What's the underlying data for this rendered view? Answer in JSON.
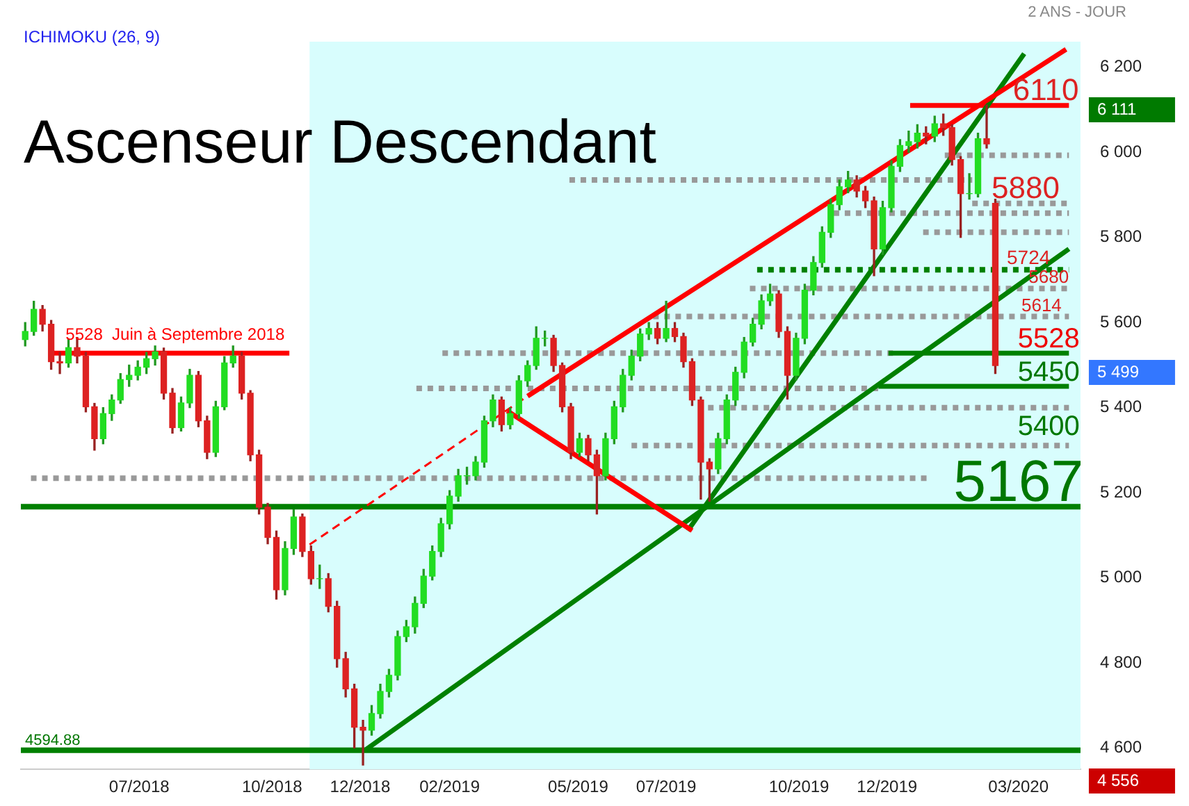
{
  "chart_data": {
    "type": "candlestick",
    "title": "Ascenseur Descendant",
    "subtitle": "ICHIMOKU (26, 9)",
    "x": [
      "2018-04-13",
      "2018-04-19",
      "2018-04-25",
      "2018-05-01",
      "2018-05-07",
      "2018-05-13",
      "2018-05-19",
      "2018-05-25",
      "2018-05-31",
      "2018-06-06",
      "2018-06-12",
      "2018-06-18",
      "2018-06-24",
      "2018-06-30",
      "2018-07-06",
      "2018-07-12",
      "2018-07-18",
      "2018-07-24",
      "2018-07-30",
      "2018-08-05",
      "2018-08-11",
      "2018-08-17",
      "2018-08-23",
      "2018-08-29",
      "2018-09-04",
      "2018-09-10",
      "2018-09-16",
      "2018-09-22",
      "2018-09-28",
      "2018-10-04",
      "2018-10-10",
      "2018-10-16",
      "2018-10-22",
      "2018-10-28",
      "2018-11-03",
      "2018-11-09",
      "2018-11-15",
      "2018-11-21",
      "2018-11-27",
      "2018-12-03",
      "2018-12-09",
      "2018-12-15",
      "2018-12-21",
      "2018-12-27",
      "2019-01-02",
      "2019-01-08",
      "2019-01-14",
      "2019-01-20",
      "2019-01-26",
      "2019-02-01",
      "2019-02-07",
      "2019-02-13",
      "2019-02-19",
      "2019-02-25",
      "2019-03-03",
      "2019-03-09",
      "2019-03-15",
      "2019-03-21",
      "2019-03-27",
      "2019-04-02",
      "2019-04-08",
      "2019-04-14",
      "2019-04-20",
      "2019-04-26",
      "2019-05-02",
      "2019-05-08",
      "2019-05-14",
      "2019-05-20",
      "2019-05-26",
      "2019-06-01",
      "2019-06-07",
      "2019-06-13",
      "2019-06-19",
      "2019-06-25",
      "2019-07-01",
      "2019-07-07",
      "2019-07-13",
      "2019-07-19",
      "2019-07-25",
      "2019-07-31",
      "2019-08-06",
      "2019-08-12",
      "2019-08-18",
      "2019-08-24",
      "2019-08-30",
      "2019-09-05",
      "2019-09-11",
      "2019-09-17",
      "2019-09-23",
      "2019-09-29",
      "2019-10-05",
      "2019-10-11",
      "2019-10-17",
      "2019-10-23",
      "2019-10-29",
      "2019-11-04",
      "2019-11-10",
      "2019-11-16",
      "2019-11-22",
      "2019-11-28",
      "2019-12-04",
      "2019-12-10",
      "2019-12-16",
      "2019-12-22",
      "2019-12-28",
      "2020-01-03",
      "2020-01-09",
      "2020-01-15",
      "2020-01-21",
      "2020-01-27",
      "2020-02-02",
      "2020-02-08",
      "2020-02-14"
    ],
    "ohlc": [
      [
        5560,
        5600,
        5545,
        5579
      ],
      [
        5579,
        5650,
        5570,
        5631
      ],
      [
        5631,
        5640,
        5580,
        5596
      ],
      [
        5596,
        5605,
        5490,
        5508
      ],
      [
        5508,
        5530,
        5480,
        5505
      ],
      [
        5505,
        5560,
        5495,
        5541
      ],
      [
        5541,
        5565,
        5505,
        5521
      ],
      [
        5521,
        5530,
        5390,
        5402
      ],
      [
        5402,
        5410,
        5300,
        5327
      ],
      [
        5327,
        5400,
        5315,
        5386
      ],
      [
        5386,
        5430,
        5370,
        5418
      ],
      [
        5418,
        5480,
        5410,
        5466
      ],
      [
        5466,
        5500,
        5450,
        5476
      ],
      [
        5476,
        5510,
        5465,
        5495
      ],
      [
        5495,
        5530,
        5480,
        5515
      ],
      [
        5515,
        5545,
        5500,
        5531
      ],
      [
        5531,
        5540,
        5420,
        5434
      ],
      [
        5434,
        5445,
        5340,
        5353
      ],
      [
        5353,
        5425,
        5345,
        5411
      ],
      [
        5411,
        5490,
        5400,
        5476
      ],
      [
        5476,
        5485,
        5355,
        5369
      ],
      [
        5369,
        5380,
        5280,
        5295
      ],
      [
        5295,
        5415,
        5285,
        5402
      ],
      [
        5402,
        5520,
        5395,
        5505
      ],
      [
        5505,
        5545,
        5495,
        5521
      ],
      [
        5521,
        5530,
        5420,
        5434
      ],
      [
        5434,
        5440,
        5275,
        5289
      ],
      [
        5289,
        5300,
        5150,
        5166
      ],
      [
        5166,
        5175,
        5080,
        5095
      ],
      [
        5095,
        5110,
        4950,
        4972
      ],
      [
        4972,
        5085,
        4960,
        5069
      ],
      [
        5069,
        5160,
        5055,
        5143
      ],
      [
        5143,
        5150,
        5050,
        5062
      ],
      [
        5062,
        5075,
        4985,
        4998
      ],
      [
        4998,
        5030,
        4975,
        4998
      ],
      [
        4998,
        5010,
        4920,
        4933
      ],
      [
        4933,
        4945,
        4790,
        4810
      ],
      [
        4810,
        4825,
        4720,
        4739
      ],
      [
        4739,
        4750,
        4600,
        4649
      ],
      [
        4649,
        4665,
        4560,
        4642
      ],
      [
        4642,
        4700,
        4630,
        4681
      ],
      [
        4681,
        4750,
        4670,
        4733
      ],
      [
        4733,
        4785,
        4720,
        4771
      ],
      [
        4771,
        4875,
        4760,
        4862
      ],
      [
        4862,
        4900,
        4850,
        4885
      ],
      [
        4885,
        4955,
        4870,
        4940
      ],
      [
        4940,
        5020,
        4930,
        5004
      ],
      [
        5004,
        5075,
        4995,
        5062
      ],
      [
        5062,
        5140,
        5050,
        5127
      ],
      [
        5127,
        5205,
        5115,
        5192
      ],
      [
        5192,
        5255,
        5180,
        5240
      ],
      [
        5240,
        5260,
        5220,
        5240
      ],
      [
        5240,
        5285,
        5230,
        5272
      ],
      [
        5272,
        5380,
        5260,
        5369
      ],
      [
        5369,
        5430,
        5355,
        5418
      ],
      [
        5418,
        5425,
        5345,
        5360
      ],
      [
        5360,
        5400,
        5350,
        5386
      ],
      [
        5386,
        5475,
        5375,
        5463
      ],
      [
        5463,
        5510,
        5450,
        5499
      ],
      [
        5499,
        5590,
        5490,
        5563
      ],
      [
        5563,
        5580,
        5545,
        5563
      ],
      [
        5563,
        5570,
        5485,
        5499
      ],
      [
        5499,
        5505,
        5390,
        5402
      ],
      [
        5402,
        5410,
        5280,
        5295
      ],
      [
        5295,
        5340,
        5285,
        5327
      ],
      [
        5327,
        5335,
        5275,
        5289
      ],
      [
        5289,
        5300,
        5150,
        5240
      ],
      [
        5240,
        5340,
        5230,
        5327
      ],
      [
        5327,
        5415,
        5315,
        5402
      ],
      [
        5402,
        5490,
        5390,
        5476
      ],
      [
        5476,
        5535,
        5465,
        5521
      ],
      [
        5521,
        5585,
        5510,
        5573
      ],
      [
        5573,
        5600,
        5560,
        5586
      ],
      [
        5586,
        5600,
        5550,
        5563
      ],
      [
        5563,
        5650,
        5555,
        5586
      ],
      [
        5586,
        5600,
        5555,
        5567
      ],
      [
        5567,
        5575,
        5495,
        5508
      ],
      [
        5508,
        5515,
        5405,
        5418
      ],
      [
        5418,
        5425,
        5185,
        5272
      ],
      [
        5272,
        5280,
        5180,
        5256
      ],
      [
        5256,
        5340,
        5245,
        5327
      ],
      [
        5327,
        5430,
        5315,
        5418
      ],
      [
        5418,
        5495,
        5405,
        5483
      ],
      [
        5483,
        5565,
        5470,
        5554
      ],
      [
        5554,
        5610,
        5545,
        5596
      ],
      [
        5596,
        5665,
        5585,
        5651
      ],
      [
        5651,
        5690,
        5640,
        5667
      ],
      [
        5667,
        5675,
        5565,
        5579
      ],
      [
        5579,
        5590,
        5420,
        5476
      ],
      [
        5476,
        5575,
        5465,
        5563
      ],
      [
        5563,
        5690,
        5550,
        5676
      ],
      [
        5676,
        5755,
        5665,
        5741
      ],
      [
        5741,
        5825,
        5730,
        5812
      ],
      [
        5812,
        5890,
        5800,
        5877
      ],
      [
        5877,
        5935,
        5865,
        5919
      ],
      [
        5919,
        5955,
        5905,
        5935
      ],
      [
        5935,
        5945,
        5895,
        5909
      ],
      [
        5909,
        5920,
        5870,
        5886
      ],
      [
        5886,
        5895,
        5710,
        5773
      ],
      [
        5773,
        5885,
        5760,
        5870
      ],
      [
        5870,
        5980,
        5860,
        5967
      ],
      [
        5967,
        6030,
        5955,
        6016
      ],
      [
        6016,
        6050,
        6000,
        6025
      ],
      [
        6025,
        6065,
        6010,
        6045
      ],
      [
        6045,
        6060,
        6020,
        6038
      ],
      [
        6038,
        6085,
        6025,
        6067
      ],
      [
        6067,
        6090,
        6040,
        6058
      ],
      [
        6058,
        6065,
        5970,
        5983
      ],
      [
        5983,
        5990,
        5800,
        5903
      ],
      [
        5903,
        5950,
        5890,
        5903
      ],
      [
        5903,
        6045,
        5895,
        6032
      ],
      [
        6032,
        6111,
        6010,
        6020
      ],
      [
        5880,
        5890,
        5480,
        5499
      ]
    ],
    "series": [
      {
        "type": "line",
        "x": [
          "2018-05-01",
          "2018-10-13"
        ],
        "values": [
          5528,
          5528
        ],
        "color": "#ff0000",
        "line_style": "solid"
      },
      {
        "type": "line",
        "x": [
          "2018-10-27",
          "2019-03-27"
        ],
        "values": [
          5078,
          5427
        ],
        "color": "#ff0000",
        "line_style": "dashed"
      },
      {
        "type": "line",
        "x": [
          "2019-03-27",
          "2020-04-03"
        ],
        "values": [
          5427,
          6242
        ],
        "color": "#ff0000",
        "line_style": "solid"
      },
      {
        "type": "line",
        "x": [
          "2019-03-13",
          "2019-07-19"
        ],
        "values": [
          5392,
          5111
        ],
        "color": "#ff0000",
        "line_style": "solid"
      },
      {
        "type": "line",
        "x": [
          "2019-07-16",
          "2020-03-05"
        ],
        "values": [
          5111,
          6232
        ],
        "color": "#008000",
        "line_style": "solid"
      },
      {
        "type": "line",
        "x": [
          "2018-12-04",
          "2020-04-05"
        ],
        "values": [
          4594,
          5773
        ],
        "color": "#008000",
        "line_style": "solid"
      },
      {
        "type": "line",
        "x": [
          "2019-12-17",
          "2020-04-05"
        ],
        "values": [
          6110,
          6110
        ],
        "color": "#ff0000",
        "line_style": "solid"
      },
      {
        "type": "line",
        "x": [
          "2019-12-02",
          "2020-04-05"
        ],
        "values": [
          5528,
          5528
        ],
        "color": "#008000",
        "line_style": "solid"
      },
      {
        "type": "line",
        "x": [
          "2019-11-25",
          "2020-04-05"
        ],
        "values": [
          5450,
          5450
        ],
        "color": "#008000",
        "line_style": "solid"
      },
      {
        "type": "line",
        "x": [
          "2019-09-02",
          "2020-04-05"
        ],
        "values": [
          5724,
          5724
        ],
        "color": "#008000",
        "line_style": "dotted"
      },
      {
        "type": "line",
        "x": [
          "2018-04-17",
          "2019-12-31"
        ],
        "values": [
          5234,
          5234
        ],
        "color": "#999999",
        "line_style": "dotted"
      },
      {
        "type": "line",
        "x": [
          "2019-01-09",
          "2019-11-25"
        ],
        "values": [
          5445,
          5445
        ],
        "color": "#999999",
        "line_style": "dotted"
      },
      {
        "type": "line",
        "x": [
          "2019-01-27",
          "2019-12-07"
        ],
        "values": [
          5528,
          5528
        ],
        "color": "#999999",
        "line_style": "dotted"
      },
      {
        "type": "line",
        "x": [
          "2019-06-07",
          "2020-04-05"
        ],
        "values": [
          5311,
          5311
        ],
        "color": "#999999",
        "line_style": "dotted"
      },
      {
        "type": "line",
        "x": [
          "2019-07-30",
          "2020-04-05"
        ],
        "values": [
          5400,
          5400
        ],
        "color": "#999999",
        "line_style": "dotted"
      },
      {
        "type": "line",
        "x": [
          "2019-06-22",
          "2020-04-05"
        ],
        "values": [
          5614,
          5614
        ],
        "color": "#999999",
        "line_style": "dotted"
      },
      {
        "type": "line",
        "x": [
          "2019-08-28",
          "2020-04-05"
        ],
        "values": [
          5680,
          5680
        ],
        "color": "#999999",
        "line_style": "dotted"
      },
      {
        "type": "line",
        "x": [
          "2019-12-26",
          "2020-04-05"
        ],
        "values": [
          5812,
          5812
        ],
        "color": "#999999",
        "line_style": "dotted"
      },
      {
        "type": "line",
        "x": [
          "2019-10-25",
          "2020-04-05"
        ],
        "values": [
          5857,
          5857
        ],
        "color": "#999999",
        "line_style": "dotted"
      },
      {
        "type": "line",
        "x": [
          "2020-01-29",
          "2020-04-05"
        ],
        "values": [
          5880,
          5880
        ],
        "color": "#999999",
        "line_style": "dotted"
      },
      {
        "type": "line",
        "x": [
          "2019-04-25",
          "2020-01-29"
        ],
        "values": [
          5935,
          5935
        ],
        "color": "#999999",
        "line_style": "dotted"
      },
      {
        "type": "line",
        "x": [
          "2020-01-10",
          "2020-04-05"
        ],
        "values": [
          5993,
          5993
        ],
        "color": "#999999",
        "line_style": "dotted"
      }
    ],
    "ref_lines": [
      {
        "axis": "y",
        "value": 5167,
        "color": "#008000"
      },
      {
        "axis": "y",
        "value": 4594.88,
        "color": "#008000"
      }
    ],
    "bands": [
      {
        "axis": "x",
        "from": "2018-10-27",
        "to": "2020-04-13",
        "color": "#d8fdfd"
      }
    ],
    "annotations": [
      "2 ANS - JOUR",
      {
        "text": "5528  Juin à Septembre 2018",
        "x": "2018-05-11",
        "y": 5570
      },
      {
        "text": "6110",
        "x": "2020-03-20",
        "y": 6110
      },
      {
        "text": "5880",
        "x": "2020-03-06",
        "y": 5880
      },
      {
        "text": "5724",
        "x": "2020-03-08",
        "y": 5724
      },
      {
        "text": "5680",
        "x": "2020-03-22",
        "y": 5680
      },
      {
        "text": "5614",
        "x": "2020-03-17",
        "y": 5614
      },
      {
        "text": "5528",
        "x": "2020-03-22",
        "y": 5528
      },
      {
        "text": "5450",
        "x": "2020-03-22",
        "y": 5450
      },
      {
        "text": "5400",
        "x": "2020-03-22",
        "y": 5400
      },
      {
        "text": "5167",
        "x": "2020-03-01",
        "y": 5167
      },
      {
        "text": "4594.88",
        "x": "2018-05-02",
        "y": 4594.88
      },
      "6 111",
      "5 499",
      "4 556"
    ],
    "xlim": [
      "2018-04-10",
      "2020-04-13"
    ],
    "xticks": [
      {
        "value": "2018-07-01",
        "label": "07/2018"
      },
      {
        "value": "2018-10-01",
        "label": "10/2018"
      },
      {
        "value": "2018-12-01",
        "label": "12/2018"
      },
      {
        "value": "2019-02-01",
        "label": "02/2019"
      },
      {
        "value": "2019-05-01",
        "label": "05/2019"
      },
      {
        "value": "2019-07-01",
        "label": "07/2019"
      },
      {
        "value": "2019-10-01",
        "label": "10/2019"
      },
      {
        "value": "2019-12-01",
        "label": "12/2019"
      },
      {
        "value": "2020-03-01",
        "label": "03/2020"
      }
    ],
    "ylim": [
      4550,
      6260
    ],
    "yticks": [
      {
        "value": 4600,
        "label": "4 600"
      },
      {
        "value": 4800,
        "label": "4 800"
      },
      {
        "value": 5000,
        "label": "5 000"
      },
      {
        "value": 5200,
        "label": "5 200"
      },
      {
        "value": 5400,
        "label": "5 400"
      },
      {
        "value": 5600,
        "label": "5 600"
      },
      {
        "value": 5800,
        "label": "5 800"
      },
      {
        "value": 6000,
        "label": "6 000"
      },
      {
        "value": 6200,
        "label": "6 200"
      }
    ],
    "grid": false,
    "legend": false
  }
}
